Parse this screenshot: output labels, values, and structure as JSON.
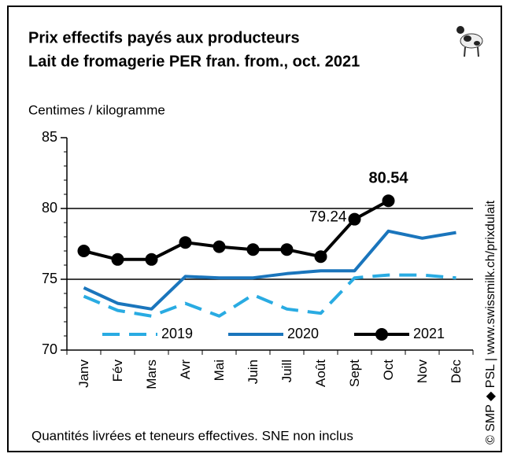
{
  "chart_data": {
    "type": "line",
    "title": "Prix effectifs payés aux producteurs",
    "subtitle": "Lait de fromagerie PER fran. from., oct. 2021",
    "y_axis_label": "Centimes / kilogramme",
    "footnote": "Quantités livrées et teneurs effectives.  SNE non inclus",
    "source": "© SMP ◆ PSL | www.swissmilk.ch/prixdulait",
    "categories": [
      "Janv",
      "Fév",
      "Mars",
      "Avr",
      "Mai",
      "Juin",
      "Juill",
      "Août",
      "Sept",
      "Oct",
      "Nov",
      "Déc"
    ],
    "series": [
      {
        "name": "2019",
        "color": "#29abe2",
        "dashed": true,
        "values": [
          73.8,
          72.8,
          72.4,
          73.3,
          72.4,
          73.9,
          72.9,
          72.6,
          75.1,
          75.3,
          75.3,
          75.1
        ]
      },
      {
        "name": "2020",
        "color": "#1a75bc",
        "values": [
          74.4,
          73.3,
          72.9,
          75.2,
          75.1,
          75.1,
          75.4,
          75.6,
          75.6,
          78.4,
          77.9,
          78.3
        ]
      },
      {
        "name": "2021",
        "color": "#000000",
        "markers": true,
        "values": [
          77.0,
          76.4,
          76.4,
          77.6,
          77.3,
          77.1,
          77.1,
          76.6,
          79.24,
          80.54,
          null,
          null
        ]
      }
    ],
    "ylim": [
      70,
      85
    ],
    "yticks": [
      70,
      75,
      80,
      85
    ],
    "grid": true
  }
}
